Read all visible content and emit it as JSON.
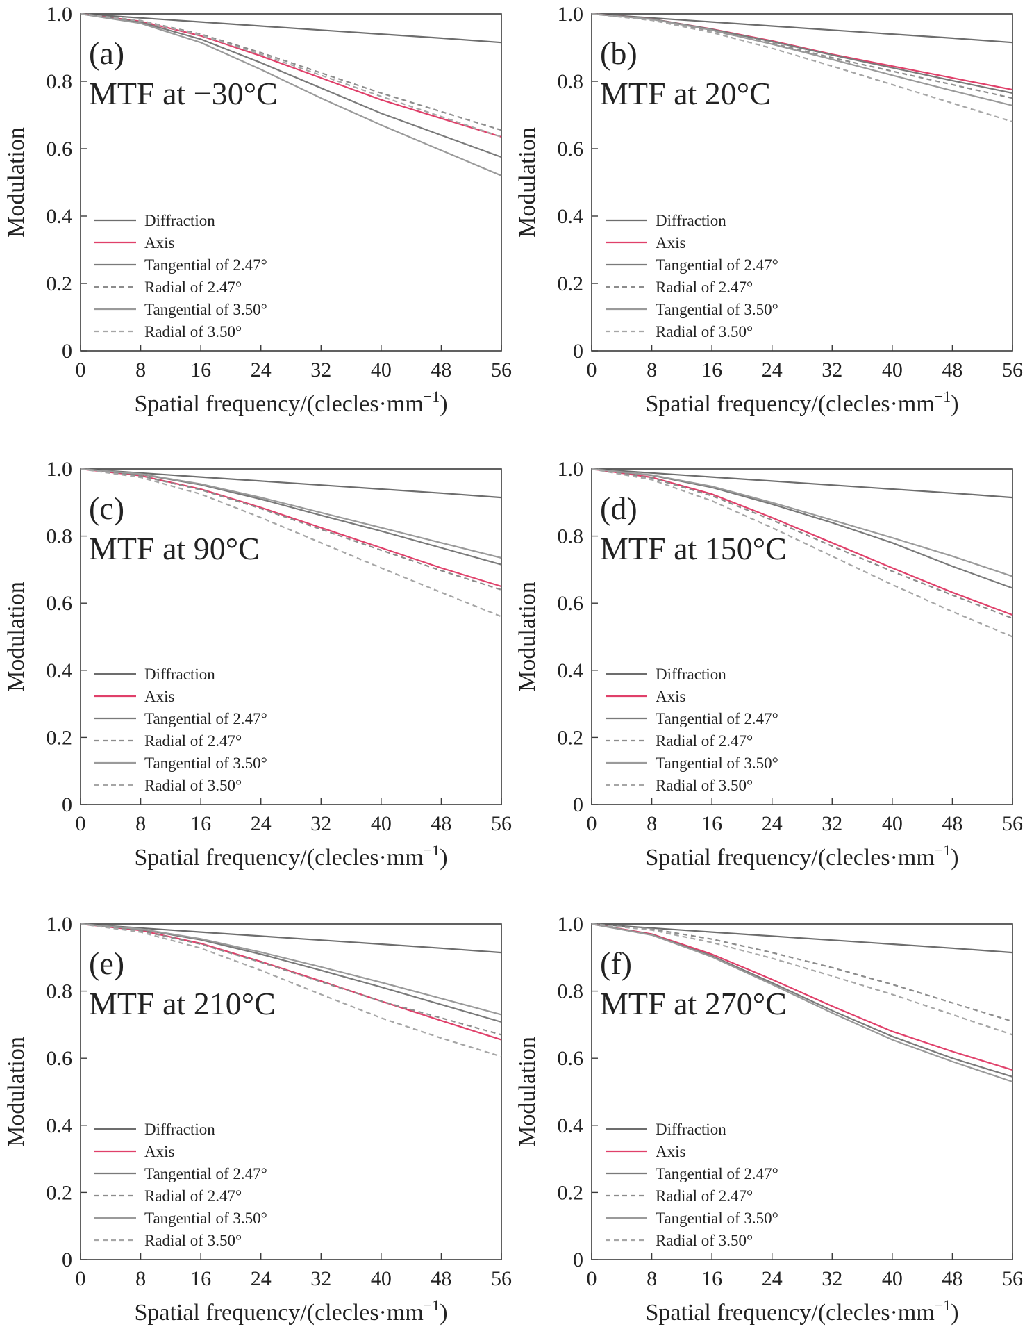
{
  "chart_data": [
    {
      "type": "line",
      "panel_label": "(a)",
      "title": "MTF at −30°C",
      "xlabel": "Spatial frequency/(clecles·mm",
      "xlabel_sup": "−1",
      "xlabel_close": ")",
      "ylabel": "Modulation",
      "xlim": [
        0,
        56
      ],
      "ylim": [
        0,
        1.0
      ],
      "xticks": [
        "0",
        "8",
        "16",
        "24",
        "32",
        "40",
        "48",
        "56"
      ],
      "yticks": [
        "0",
        "0.2",
        "0.4",
        "0.6",
        "0.8",
        "1.0"
      ],
      "grid": false,
      "legend_position": "bottom-left",
      "series": [
        {
          "name": "Diffraction",
          "x": [
            0,
            8,
            16,
            24,
            32,
            40,
            48,
            56
          ],
          "y": [
            1.0,
            0.988,
            0.976,
            0.964,
            0.952,
            0.94,
            0.928,
            0.915
          ]
        },
        {
          "name": "Axis",
          "x": [
            0,
            8,
            16,
            24,
            32,
            40,
            48,
            56
          ],
          "y": [
            1.0,
            0.978,
            0.935,
            0.875,
            0.81,
            0.745,
            0.69,
            0.635
          ]
        },
        {
          "name": "Tangential of 2.47°",
          "x": [
            0,
            8,
            16,
            24,
            32,
            40,
            48,
            56
          ],
          "y": [
            1.0,
            0.975,
            0.925,
            0.855,
            0.78,
            0.705,
            0.64,
            0.575
          ]
        },
        {
          "name": "Radial of 2.47°",
          "x": [
            0,
            8,
            16,
            24,
            32,
            40,
            48,
            56
          ],
          "y": [
            1.0,
            0.98,
            0.94,
            0.885,
            0.825,
            0.765,
            0.71,
            0.655
          ]
        },
        {
          "name": "Tangential of 3.50°",
          "x": [
            0,
            8,
            16,
            24,
            32,
            40,
            48,
            56
          ],
          "y": [
            1.0,
            0.972,
            0.915,
            0.835,
            0.75,
            0.67,
            0.595,
            0.52
          ]
        },
        {
          "name": "Radial of 3.50°",
          "x": [
            0,
            8,
            16,
            24,
            32,
            40,
            48,
            56
          ],
          "y": [
            1.0,
            0.979,
            0.937,
            0.88,
            0.818,
            0.755,
            0.695,
            0.635
          ]
        }
      ]
    },
    {
      "type": "line",
      "panel_label": "(b)",
      "title": "MTF at 20°C",
      "xlabel": "Spatial frequency/(clecles·mm",
      "xlabel_sup": "−1",
      "xlabel_close": ")",
      "ylabel": "Modulation",
      "xlim": [
        0,
        56
      ],
      "ylim": [
        0,
        1.0
      ],
      "xticks": [
        "0",
        "8",
        "16",
        "24",
        "32",
        "40",
        "48",
        "56"
      ],
      "yticks": [
        "0",
        "0.2",
        "0.4",
        "0.6",
        "0.8",
        "1.0"
      ],
      "grid": false,
      "legend_position": "bottom-left",
      "series": [
        {
          "name": "Diffraction",
          "x": [
            0,
            8,
            16,
            24,
            32,
            40,
            48,
            56
          ],
          "y": [
            1.0,
            0.988,
            0.976,
            0.964,
            0.952,
            0.94,
            0.928,
            0.915
          ]
        },
        {
          "name": "Axis",
          "x": [
            0,
            8,
            16,
            24,
            32,
            40,
            48,
            56
          ],
          "y": [
            1.0,
            0.985,
            0.955,
            0.92,
            0.88,
            0.845,
            0.81,
            0.775
          ]
        },
        {
          "name": "Tangential of 2.47°",
          "x": [
            0,
            8,
            16,
            24,
            32,
            40,
            48,
            56
          ],
          "y": [
            1.0,
            0.985,
            0.954,
            0.918,
            0.878,
            0.84,
            0.802,
            0.765
          ]
        },
        {
          "name": "Radial of 2.47°",
          "x": [
            0,
            8,
            16,
            24,
            32,
            40,
            48,
            56
          ],
          "y": [
            1.0,
            0.983,
            0.95,
            0.913,
            0.87,
            0.83,
            0.79,
            0.75
          ]
        },
        {
          "name": "Tangential of 3.50°",
          "x": [
            0,
            8,
            16,
            24,
            32,
            40,
            48,
            56
          ],
          "y": [
            1.0,
            0.984,
            0.952,
            0.91,
            0.865,
            0.818,
            0.772,
            0.728
          ]
        },
        {
          "name": "Radial of 3.50°",
          "x": [
            0,
            8,
            16,
            24,
            32,
            40,
            48,
            56
          ],
          "y": [
            1.0,
            0.981,
            0.945,
            0.898,
            0.845,
            0.79,
            0.735,
            0.68
          ]
        }
      ]
    },
    {
      "type": "line",
      "panel_label": "(c)",
      "title": "MTF at 90°C",
      "xlabel": "Spatial frequency/(clecles·mm",
      "xlabel_sup": "−1",
      "xlabel_close": ")",
      "ylabel": "Modulation",
      "xlim": [
        0,
        56
      ],
      "ylim": [
        0,
        1.0
      ],
      "xticks": [
        "0",
        "8",
        "16",
        "24",
        "32",
        "40",
        "48",
        "56"
      ],
      "yticks": [
        "0",
        "0.2",
        "0.4",
        "0.6",
        "0.8",
        "1.0"
      ],
      "grid": false,
      "legend_position": "bottom-left",
      "series": [
        {
          "name": "Diffraction",
          "x": [
            0,
            8,
            16,
            24,
            32,
            40,
            48,
            56
          ],
          "y": [
            1.0,
            0.988,
            0.976,
            0.964,
            0.952,
            0.94,
            0.928,
            0.915
          ]
        },
        {
          "name": "Axis",
          "x": [
            0,
            8,
            16,
            24,
            32,
            40,
            48,
            56
          ],
          "y": [
            1.0,
            0.98,
            0.94,
            0.885,
            0.825,
            0.765,
            0.705,
            0.65
          ]
        },
        {
          "name": "Tangential of 2.47°",
          "x": [
            0,
            8,
            16,
            24,
            32,
            40,
            48,
            56
          ],
          "y": [
            1.0,
            0.984,
            0.953,
            0.91,
            0.862,
            0.815,
            0.765,
            0.715
          ]
        },
        {
          "name": "Radial of 2.47°",
          "x": [
            0,
            8,
            16,
            24,
            32,
            40,
            48,
            56
          ],
          "y": [
            1.0,
            0.979,
            0.938,
            0.882,
            0.82,
            0.758,
            0.697,
            0.64
          ]
        },
        {
          "name": "Tangential of 3.50°",
          "x": [
            0,
            8,
            16,
            24,
            32,
            40,
            48,
            56
          ],
          "y": [
            1.0,
            0.985,
            0.955,
            0.915,
            0.87,
            0.825,
            0.78,
            0.735
          ]
        },
        {
          "name": "Radial of 3.50°",
          "x": [
            0,
            8,
            16,
            24,
            32,
            40,
            48,
            56
          ],
          "y": [
            1.0,
            0.975,
            0.925,
            0.855,
            0.78,
            0.705,
            0.632,
            0.56
          ]
        }
      ]
    },
    {
      "type": "line",
      "panel_label": "(d)",
      "title": "MTF at 150°C",
      "xlabel": "Spatial frequency/(clecles·mm",
      "xlabel_sup": "−1",
      "xlabel_close": ")",
      "ylabel": "Modulation",
      "xlim": [
        0,
        56
      ],
      "ylim": [
        0,
        1.0
      ],
      "xticks": [
        "0",
        "8",
        "16",
        "24",
        "32",
        "40",
        "48",
        "56"
      ],
      "yticks": [
        "0",
        "0.2",
        "0.4",
        "0.6",
        "0.8",
        "1.0"
      ],
      "grid": false,
      "legend_position": "bottom-left",
      "series": [
        {
          "name": "Diffraction",
          "x": [
            0,
            8,
            16,
            24,
            32,
            40,
            48,
            56
          ],
          "y": [
            1.0,
            0.988,
            0.976,
            0.964,
            0.952,
            0.94,
            0.928,
            0.915
          ]
        },
        {
          "name": "Axis",
          "x": [
            0,
            8,
            16,
            24,
            32,
            40,
            48,
            56
          ],
          "y": [
            1.0,
            0.975,
            0.925,
            0.855,
            0.78,
            0.705,
            0.632,
            0.565
          ]
        },
        {
          "name": "Tangential of 2.47°",
          "x": [
            0,
            8,
            16,
            24,
            32,
            40,
            48,
            56
          ],
          "y": [
            1.0,
            0.981,
            0.945,
            0.895,
            0.84,
            0.78,
            0.71,
            0.645
          ]
        },
        {
          "name": "Radial of 2.47°",
          "x": [
            0,
            8,
            16,
            24,
            32,
            40,
            48,
            56
          ],
          "y": [
            1.0,
            0.973,
            0.92,
            0.848,
            0.77,
            0.695,
            0.624,
            0.555
          ]
        },
        {
          "name": "Tangential of 3.50°",
          "x": [
            0,
            8,
            16,
            24,
            32,
            40,
            48,
            56
          ],
          "y": [
            1.0,
            0.982,
            0.948,
            0.9,
            0.848,
            0.795,
            0.74,
            0.68
          ]
        },
        {
          "name": "Radial of 3.50°",
          "x": [
            0,
            8,
            16,
            24,
            32,
            40,
            48,
            56
          ],
          "y": [
            1.0,
            0.968,
            0.905,
            0.825,
            0.74,
            0.655,
            0.575,
            0.5
          ]
        }
      ]
    },
    {
      "type": "line",
      "panel_label": "(e)",
      "title": "MTF at 210°C",
      "xlabel": "Spatial frequency/(clecles·mm",
      "xlabel_sup": "−1",
      "xlabel_close": ")",
      "ylabel": "Modulation",
      "xlim": [
        0,
        56
      ],
      "ylim": [
        0,
        1.0
      ],
      "xticks": [
        "0",
        "8",
        "16",
        "24",
        "32",
        "40",
        "48",
        "56"
      ],
      "yticks": [
        "0",
        "0.2",
        "0.4",
        "0.6",
        "0.8",
        "1.0"
      ],
      "grid": false,
      "legend_position": "bottom-left",
      "series": [
        {
          "name": "Diffraction",
          "x": [
            0,
            8,
            16,
            24,
            32,
            40,
            48,
            56
          ],
          "y": [
            1.0,
            0.988,
            0.976,
            0.964,
            0.952,
            0.94,
            0.928,
            0.915
          ]
        },
        {
          "name": "Axis",
          "x": [
            0,
            8,
            16,
            24,
            32,
            40,
            48,
            56
          ],
          "y": [
            1.0,
            0.981,
            0.942,
            0.888,
            0.83,
            0.77,
            0.712,
            0.655
          ]
        },
        {
          "name": "Tangential of 2.47°",
          "x": [
            0,
            8,
            16,
            24,
            32,
            40,
            48,
            56
          ],
          "y": [
            1.0,
            0.984,
            0.953,
            0.91,
            0.862,
            0.812,
            0.76,
            0.708
          ]
        },
        {
          "name": "Radial of 2.47°",
          "x": [
            0,
            8,
            16,
            24,
            32,
            40,
            48,
            56
          ],
          "y": [
            1.0,
            0.98,
            0.94,
            0.886,
            0.828,
            0.77,
            0.72,
            0.67
          ]
        },
        {
          "name": "Tangential of 3.50°",
          "x": [
            0,
            8,
            16,
            24,
            32,
            40,
            48,
            56
          ],
          "y": [
            1.0,
            0.985,
            0.956,
            0.916,
            0.872,
            0.826,
            0.778,
            0.73
          ]
        },
        {
          "name": "Radial of 3.50°",
          "x": [
            0,
            8,
            16,
            24,
            32,
            40,
            48,
            56
          ],
          "y": [
            1.0,
            0.976,
            0.928,
            0.862,
            0.79,
            0.72,
            0.66,
            0.605
          ]
        }
      ]
    },
    {
      "type": "line",
      "panel_label": "(f)",
      "title": "MTF at 270°C",
      "xlabel": "Spatial frequency/(clecles·mm",
      "xlabel_sup": "−1",
      "xlabel_close": ")",
      "ylabel": "Modulation",
      "xlim": [
        0,
        56
      ],
      "ylim": [
        0,
        1.0
      ],
      "xticks": [
        "0",
        "8",
        "16",
        "24",
        "32",
        "40",
        "48",
        "56"
      ],
      "yticks": [
        "0",
        "0.2",
        "0.4",
        "0.6",
        "0.8",
        "1.0"
      ],
      "grid": false,
      "legend_position": "bottom-left",
      "series": [
        {
          "name": "Diffraction",
          "x": [
            0,
            8,
            16,
            24,
            32,
            40,
            48,
            56
          ],
          "y": [
            1.0,
            0.988,
            0.976,
            0.964,
            0.952,
            0.94,
            0.928,
            0.915
          ]
        },
        {
          "name": "Axis",
          "x": [
            0,
            8,
            16,
            24,
            32,
            40,
            48,
            56
          ],
          "y": [
            1.0,
            0.97,
            0.91,
            0.835,
            0.755,
            0.68,
            0.62,
            0.565
          ]
        },
        {
          "name": "Tangential of 2.47°",
          "x": [
            0,
            8,
            16,
            24,
            32,
            40,
            48,
            56
          ],
          "y": [
            1.0,
            0.968,
            0.905,
            0.825,
            0.742,
            0.665,
            0.6,
            0.545
          ]
        },
        {
          "name": "Radial of 2.47°",
          "x": [
            0,
            8,
            16,
            24,
            32,
            40,
            48,
            56
          ],
          "y": [
            1.0,
            0.985,
            0.955,
            0.915,
            0.87,
            0.82,
            0.765,
            0.71
          ]
        },
        {
          "name": "Tangential of 3.50°",
          "x": [
            0,
            8,
            16,
            24,
            32,
            40,
            48,
            56
          ],
          "y": [
            1.0,
            0.967,
            0.902,
            0.82,
            0.735,
            0.655,
            0.59,
            0.53
          ]
        },
        {
          "name": "Radial of 3.50°",
          "x": [
            0,
            8,
            16,
            24,
            32,
            40,
            48,
            56
          ],
          "y": [
            1.0,
            0.982,
            0.945,
            0.898,
            0.845,
            0.79,
            0.73,
            0.67
          ]
        }
      ]
    }
  ],
  "styles": {
    "axis_color": "#3a3a3a",
    "series": {
      "Diffraction": {
        "color": "#6d6d6d",
        "dash": "solid"
      },
      "Axis": {
        "color": "#e0406a",
        "dash": "solid"
      },
      "Tangential of 2.47°": {
        "color": "#7a7a7a",
        "dash": "solid"
      },
      "Radial of 2.47°": {
        "color": "#8c8c8c",
        "dash": "dashed"
      },
      "Tangential of 3.50°": {
        "color": "#9a9a9a",
        "dash": "solid"
      },
      "Radial of 3.50°": {
        "color": "#a6a6a6",
        "dash": "dashed"
      }
    }
  }
}
